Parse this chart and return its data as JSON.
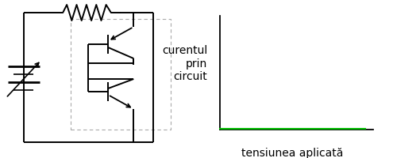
{
  "bg_color": "#ffffff",
  "wire_color": "#000000",
  "dashed_color": "#aaaaaa",
  "green_color": "#00bb00",
  "graph_ylabel": "curentul\nprin\ncircuit",
  "graph_xlabel": "tensiunea aplicată",
  "label_fontsize": 10
}
